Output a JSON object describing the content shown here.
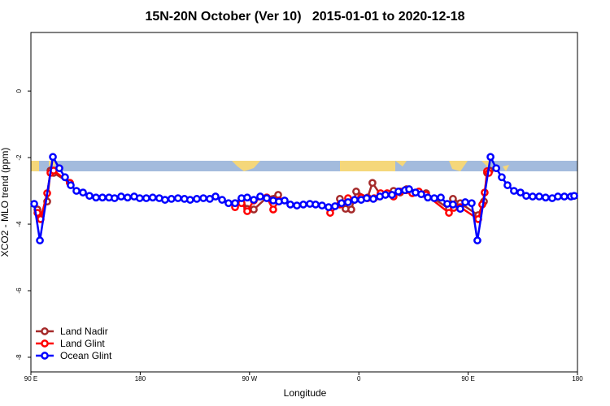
{
  "chart_data": {
    "type": "line",
    "title": "15N-20N October (Ver 10)   2015-01-01 to 2020-12-18",
    "xlabel": "Longitude",
    "ylabel": "XCO2 - MLO trend (ppm)",
    "xlim": [
      90,
      540
    ],
    "xticks": [
      {
        "value": 90,
        "label": "90 E"
      },
      180,
      {
        "value": 270,
        "label": "90 W"
      },
      {
        "value": 360,
        "label": "0"
      },
      {
        "value": 450,
        "label": "90 E"
      },
      {
        "value": 540,
        "label": "180"
      }
    ],
    "ylim": [
      -8.44,
      1.76
    ],
    "yticks": [
      0,
      -2,
      -4,
      -6,
      -8
    ],
    "legend": "lower left",
    "series": [
      {
        "name": "Land Nadir",
        "color": "#a52a2a",
        "x": [
          95.4,
          98.0,
          103.4,
          106.1,
          108.7,
          122.1,
          190,
          258.1,
          263.4,
          268.1,
          273.5,
          284.2,
          293.6,
          320,
          344.4,
          349.1,
          353.8,
          357.8,
          367.2,
          371.2,
          377.9,
          388.6,
          394.0,
          399.3,
          415.4,
          434.2,
          437.5,
          443.5,
          458.3,
          463.0,
          465.6,
          467.7
        ],
        "values": [
          -3.56,
          -3.73,
          -3.32,
          -2.39,
          -2.46,
          -2.76,
          null,
          -3.37,
          -3.24,
          -3.54,
          -3.56,
          -3.2,
          -3.12,
          null,
          -3.24,
          -3.54,
          -3.56,
          -3.02,
          -3.2,
          -2.76,
          -3.12,
          -3.0,
          -3.05,
          -2.95,
          -3.07,
          -3.54,
          -3.24,
          -3.37,
          -3.73,
          -3.32,
          -2.46,
          -2.39
        ]
      },
      {
        "name": "Land Glint",
        "color": "#ff0000",
        "x": [
          95.4,
          98.0,
          103.4,
          106.1,
          108.7,
          122.1,
          190,
          258.1,
          263.4,
          268.1,
          273.5,
          284.2,
          289.5,
          294.2,
          320,
          336.4,
          344.4,
          351.1,
          356.5,
          361.9,
          367.2,
          372.6,
          377.9,
          383.3,
          388.6,
          394.0,
          399.3,
          404.0,
          409.4,
          415.4,
          434.2,
          438.2,
          443.5,
          458.3,
          461.6,
          463.6,
          465.6,
          467.0
        ],
        "values": [
          -3.66,
          -3.85,
          -3.07,
          -2.46,
          -2.39,
          -2.76,
          null,
          -3.49,
          -3.37,
          -3.61,
          -3.29,
          -3.2,
          -3.56,
          -3.29,
          null,
          -3.66,
          -3.41,
          -3.22,
          -3.27,
          -3.2,
          -3.22,
          -3.22,
          -3.07,
          -3.07,
          -3.17,
          -3.02,
          -2.98,
          -3.07,
          -3.02,
          -3.12,
          -3.66,
          -3.51,
          -3.49,
          -3.85,
          -3.41,
          -3.05,
          -2.41,
          -2.46
        ]
      },
      {
        "name": "Ocean Glint",
        "color": "#0000ff",
        "x": [
          92.7,
          97.4,
          108.1,
          113.4,
          118.1,
          122.8,
          127.5,
          132.9,
          138.2,
          143.6,
          148.9,
          154.3,
          158.9,
          164.3,
          169.6,
          175,
          179.6,
          185,
          190.3,
          195.7,
          200.4,
          205.7,
          211.1,
          216.4,
          221.1,
          226.6,
          232,
          237.3,
          242,
          247.4,
          252.7,
          258.1,
          263.4,
          268.1,
          273.5,
          278.8,
          284.2,
          289.5,
          294.2,
          298.9,
          303.6,
          309,
          314.3,
          319.7,
          324.4,
          329.7,
          335.1,
          340.4,
          345.8,
          351.1,
          356.5,
          361.9,
          366.5,
          371.9,
          377.3,
          381.9,
          387.3,
          392.6,
          398,
          401.4,
          406.7,
          411.4,
          416.8,
          422.1,
          427.5,
          432.8,
          437.5,
          443.5,
          447.6,
          452.9,
          457.6,
          468.4,
          473.1,
          477.7,
          482.4,
          487.7,
          493.1,
          497.8,
          503.1,
          508.5,
          513.8,
          519.2,
          523.9,
          529.2,
          534.6,
          537.3
        ],
        "values": [
          -3.39,
          -4.49,
          -1.98,
          -2.32,
          -2.59,
          -2.83,
          -3.0,
          -3.05,
          -3.15,
          -3.2,
          -3.2,
          -3.2,
          -3.22,
          -3.17,
          -3.2,
          -3.17,
          -3.22,
          -3.22,
          -3.2,
          -3.22,
          -3.27,
          -3.24,
          -3.22,
          -3.24,
          -3.27,
          -3.24,
          -3.22,
          -3.24,
          -3.17,
          -3.27,
          -3.37,
          -3.37,
          -3.22,
          -3.2,
          -3.27,
          -3.17,
          -3.22,
          -3.29,
          -3.32,
          -3.29,
          -3.41,
          -3.44,
          -3.41,
          -3.39,
          -3.41,
          -3.44,
          -3.49,
          -3.46,
          -3.37,
          -3.34,
          -3.27,
          -3.27,
          -3.22,
          -3.24,
          -3.17,
          -3.12,
          -3.12,
          -3.02,
          -2.98,
          -2.95,
          -3.05,
          -3.1,
          -3.2,
          -3.22,
          -3.2,
          -3.39,
          -3.41,
          -3.54,
          -3.34,
          -3.37,
          -4.49,
          -1.98,
          -2.32,
          -2.59,
          -2.83,
          -3.0,
          -3.05,
          -3.15,
          -3.17,
          -3.17,
          -3.2,
          -3.22,
          -3.17,
          -3.17,
          -3.17,
          -3.15
        ]
      }
    ]
  }
}
